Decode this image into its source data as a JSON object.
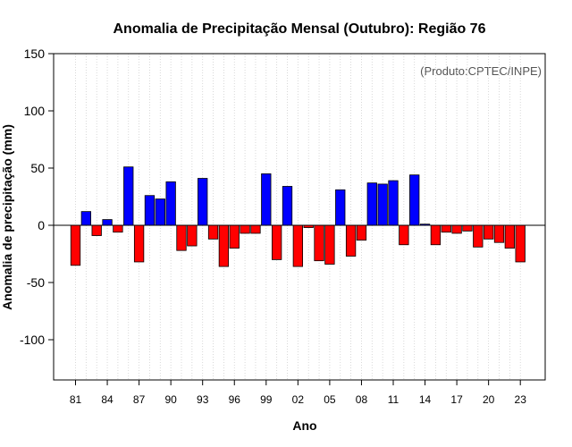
{
  "chart_data": {
    "type": "bar",
    "title": "Anomalia de Precipitação Mensal (Outubro): Região 76",
    "xlabel": "Ano",
    "ylabel": "Anomalia de precipitação (mm)",
    "annotation": "(Produto:CPTEC/INPE)",
    "ylim": [
      -135,
      150
    ],
    "yticks": [
      150,
      100,
      50,
      0,
      -50,
      -100
    ],
    "grid": true,
    "positive_color": "#0000ff",
    "negative_color": "#ff0000",
    "categories": [
      1981,
      1982,
      1983,
      1984,
      1985,
      1986,
      1987,
      1988,
      1989,
      1990,
      1991,
      1992,
      1993,
      1994,
      1995,
      1996,
      1997,
      1998,
      1999,
      2000,
      2001,
      2002,
      2003,
      2004,
      2005,
      2006,
      2007,
      2008,
      2009,
      2010,
      2011,
      2012,
      2013,
      2014,
      2015,
      2016,
      2017,
      2018,
      2019,
      2020,
      2021,
      2022,
      2023
    ],
    "values": [
      -35,
      12,
      -9,
      5,
      -6,
      51,
      -32,
      26,
      23,
      38,
      -22,
      -18,
      41,
      -12,
      -36,
      -20,
      -7,
      -7,
      45,
      -30,
      34,
      -36,
      -2,
      -31,
      -34,
      31,
      -27,
      -13,
      37,
      36,
      39,
      -17,
      44,
      1,
      -17,
      -6,
      -7,
      -5,
      -19,
      -12,
      -15,
      -20,
      -32
    ],
    "xtick_labels": [
      {
        "year": 1981,
        "label": "81"
      },
      {
        "year": 1984,
        "label": "84"
      },
      {
        "year": 1987,
        "label": "87"
      },
      {
        "year": 1990,
        "label": "90"
      },
      {
        "year": 1993,
        "label": "93"
      },
      {
        "year": 1996,
        "label": "96"
      },
      {
        "year": 1999,
        "label": "99"
      },
      {
        "year": 2002,
        "label": "02"
      },
      {
        "year": 2005,
        "label": "05"
      },
      {
        "year": 2008,
        "label": "08"
      },
      {
        "year": 2011,
        "label": "11"
      },
      {
        "year": 2014,
        "label": "14"
      },
      {
        "year": 2017,
        "label": "17"
      },
      {
        "year": 2020,
        "label": "20"
      },
      {
        "year": 2023,
        "label": "23"
      }
    ]
  }
}
